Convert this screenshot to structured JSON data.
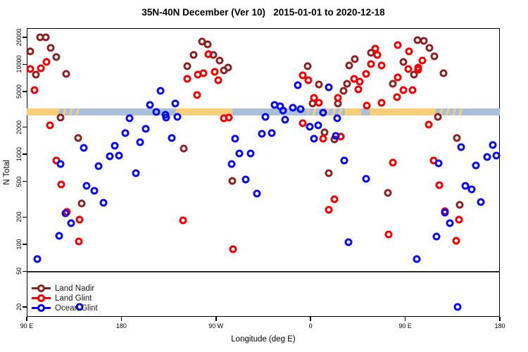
{
  "title": "35N-40N December (Ver 10)   2015-01-01 to 2020-12-18",
  "axes": {
    "x": {
      "label": "Longitude (deg E)",
      "tick_degs": [
        90,
        180,
        270,
        360,
        450,
        540
      ],
      "tick_labels": [
        "90 E",
        "180",
        "90 W",
        "0",
        "90 E",
        "180"
      ]
    },
    "y": {
      "label": "N Total",
      "scale": "log",
      "tick_values": [
        20,
        50,
        100,
        200,
        500,
        1000,
        2000,
        5000,
        10000,
        20000
      ]
    }
  },
  "legend": {
    "items": [
      {
        "label": "Land Nadir",
        "color": "#8B2323"
      },
      {
        "label": "Land Glint",
        "color": "#F50000"
      },
      {
        "label": "Ocean Glint",
        "color": "#0A0AF0"
      }
    ]
  },
  "colors": {
    "land_band": "#F7CE7C",
    "ocean_band": "#A9BFDA",
    "axis": "#000000",
    "reference_line": "#2a2a2a"
  },
  "chart_data": {
    "type": "scatter",
    "title": "35N-40N December (Ver 10)   2015-01-01 to 2020-12-18",
    "xlabel": "Longitude (deg E)",
    "ylabel": "N Total",
    "x_axis": {
      "range_deg": [
        90,
        540
      ],
      "note": "longitude wraps: 90E to 180 to 90W to 0 to 90E to 180"
    },
    "y_axis": {
      "log": true,
      "ticks": [
        20,
        50,
        100,
        200,
        500,
        1000,
        2000,
        5000,
        10000,
        20000
      ]
    },
    "reference_line_n": 50,
    "land_ocean_band": {
      "n_top": 3210,
      "n_bottom": 2680,
      "segments": [
        {
          "from": 90,
          "to": 119.5,
          "type": "land"
        },
        {
          "from": 119.5,
          "to": 143,
          "type": "coast"
        },
        {
          "from": 143,
          "to": 232,
          "type": "ocean"
        },
        {
          "from": 232,
          "to": 285.5,
          "type": "land"
        },
        {
          "from": 285.5,
          "to": 357,
          "type": "ocean"
        },
        {
          "from": 357,
          "to": 392.5,
          "type": "coast"
        },
        {
          "from": 392.5,
          "to": 408,
          "type": "land"
        },
        {
          "from": 408,
          "to": 416,
          "type": "ocean"
        },
        {
          "from": 416,
          "to": 477.5,
          "type": "land"
        },
        {
          "from": 477.5,
          "to": 504.5,
          "type": "coast"
        },
        {
          "from": 504.5,
          "to": 540,
          "type": "ocean"
        }
      ]
    },
    "series": [
      {
        "name": "Land Nadir",
        "color": "#8B2323",
        "points": [
          [
            103,
            19900
          ],
          [
            108,
            19900
          ],
          [
            113,
            15300
          ],
          [
            93.5,
            13900
          ],
          [
            118,
            12000
          ],
          [
            98.5,
            7700
          ],
          [
            127.5,
            7800
          ],
          [
            122,
            2580
          ],
          [
            139,
            1520
          ],
          [
            142,
            284
          ],
          [
            239.5,
            1150
          ],
          [
            243,
            9500
          ],
          [
            248.5,
            12800
          ],
          [
            256.5,
            18000
          ],
          [
            262,
            16600
          ],
          [
            267.5,
            12700
          ],
          [
            273.5,
            11000
          ],
          [
            277.5,
            8570
          ],
          [
            281.5,
            9200
          ],
          [
            285.5,
            508
          ],
          [
            357.5,
            9500
          ],
          [
            362,
            3660
          ],
          [
            368,
            6000
          ],
          [
            373,
            1740
          ],
          [
            377,
            616
          ],
          [
            382.5,
            1470
          ],
          [
            386,
            3700
          ],
          [
            391.5,
            5050
          ],
          [
            395,
            6030
          ],
          [
            396.5,
            9800
          ],
          [
            402,
            11400
          ],
          [
            417.5,
            13500
          ],
          [
            433.5,
            370
          ],
          [
            438.5,
            6050
          ],
          [
            448,
            10600
          ],
          [
            458,
            7700
          ],
          [
            461.5,
            18700
          ],
          [
            467.5,
            18200
          ],
          [
            473,
            15300
          ],
          [
            478,
            12300
          ],
          [
            481,
            2610
          ],
          [
            486.5,
            8000
          ],
          [
            499,
            1530
          ],
          [
            501.5,
            273
          ]
        ]
      },
      {
        "name": "Land Glint",
        "color": "#F50000",
        "points": [
          [
            108.5,
            10600
          ],
          [
            103.5,
            9000
          ],
          [
            93.5,
            8830
          ],
          [
            97.5,
            5140
          ],
          [
            112,
            2100
          ],
          [
            118,
            857
          ],
          [
            123,
            459
          ],
          [
            128.5,
            230
          ],
          [
            140.5,
            186
          ],
          [
            139.5,
            108
          ],
          [
            238.5,
            185
          ],
          [
            243,
            6940
          ],
          [
            252,
            4560
          ],
          [
            253,
            7690
          ],
          [
            258,
            7970
          ],
          [
            263,
            12900
          ],
          [
            268.5,
            8310
          ],
          [
            272,
            6650
          ],
          [
            277.5,
            2500
          ],
          [
            282,
            2570
          ],
          [
            286,
            88
          ],
          [
            352.5,
            7600
          ],
          [
            352.5,
            2220
          ],
          [
            358,
            6650
          ],
          [
            363.5,
            4220
          ],
          [
            368,
            3740
          ],
          [
            372,
            1490
          ],
          [
            377,
            243
          ],
          [
            382.5,
            316
          ],
          [
            386,
            4220
          ],
          [
            388.5,
            1570
          ],
          [
            401.5,
            6940
          ],
          [
            405.5,
            5240
          ],
          [
            407,
            6430
          ],
          [
            413,
            7830
          ],
          [
            413.5,
            3480
          ],
          [
            417.5,
            10100
          ],
          [
            421.5,
            14900
          ],
          [
            423.5,
            12700
          ],
          [
            427.5,
            9770
          ],
          [
            427.5,
            3710
          ],
          [
            434,
            128
          ],
          [
            438.5,
            807
          ],
          [
            442.5,
            4300
          ],
          [
            443,
            16300
          ],
          [
            443,
            7100
          ],
          [
            448,
            5140
          ],
          [
            453,
            8930
          ],
          [
            453.5,
            14000
          ],
          [
            457,
            5140
          ],
          [
            462,
            8670
          ],
          [
            462.5,
            9270
          ],
          [
            466.5,
            11100
          ],
          [
            472.5,
            2140
          ],
          [
            477,
            847
          ],
          [
            482.5,
            455
          ],
          [
            488,
            232
          ],
          [
            498.5,
            109
          ],
          [
            501,
            188
          ]
        ]
      },
      {
        "name": "Ocean Glint",
        "color": "#0A0AF0",
        "points": [
          [
            100,
            68
          ],
          [
            120.5,
            124
          ],
          [
            122,
            775
          ],
          [
            127,
            220
          ],
          [
            132.5,
            172
          ],
          [
            140,
            20
          ],
          [
            144,
            1180
          ],
          [
            147,
            443
          ],
          [
            154,
            392
          ],
          [
            158,
            742
          ],
          [
            163,
            290
          ],
          [
            169,
            944
          ],
          [
            174,
            1250
          ],
          [
            178,
            973
          ],
          [
            184,
            1720
          ],
          [
            187.5,
            2530
          ],
          [
            193.5,
            616
          ],
          [
            197.5,
            1350
          ],
          [
            203,
            1910
          ],
          [
            207.5,
            3520
          ],
          [
            213,
            2960
          ],
          [
            217.5,
            5050
          ],
          [
            222,
            2740
          ],
          [
            222.5,
            2580
          ],
          [
            228,
            1530
          ],
          [
            231.5,
            3660
          ],
          [
            233.5,
            2630
          ],
          [
            285,
            784
          ],
          [
            288,
            1480
          ],
          [
            292.5,
            1030
          ],
          [
            298.5,
            524
          ],
          [
            303,
            1030
          ],
          [
            309,
            366
          ],
          [
            313.5,
            1690
          ],
          [
            317,
            2630
          ],
          [
            323,
            1720
          ],
          [
            325.5,
            3560
          ],
          [
            331,
            3420
          ],
          [
            333.5,
            3080
          ],
          [
            336,
            2430
          ],
          [
            343,
            3310
          ],
          [
            348,
            5900
          ],
          [
            350.5,
            3180
          ],
          [
            359,
            2030
          ],
          [
            363.5,
            1500
          ],
          [
            367,
            2100
          ],
          [
            372,
            2900
          ],
          [
            377,
            5530
          ],
          [
            384,
            1600
          ],
          [
            385.5,
            2500
          ],
          [
            392,
            859
          ],
          [
            396,
            105
          ],
          [
            413,
            533
          ],
          [
            461,
            68
          ],
          [
            479.5,
            122
          ],
          [
            481.5,
            789
          ],
          [
            487.5,
            223
          ],
          [
            492.5,
            172
          ],
          [
            500,
            20
          ],
          [
            503,
            1200
          ],
          [
            507,
            443
          ],
          [
            513,
            404
          ],
          [
            517.5,
            755
          ],
          [
            522,
            292
          ],
          [
            528,
            938
          ],
          [
            533,
            1270
          ],
          [
            536.5,
            973
          ]
        ]
      }
    ]
  }
}
